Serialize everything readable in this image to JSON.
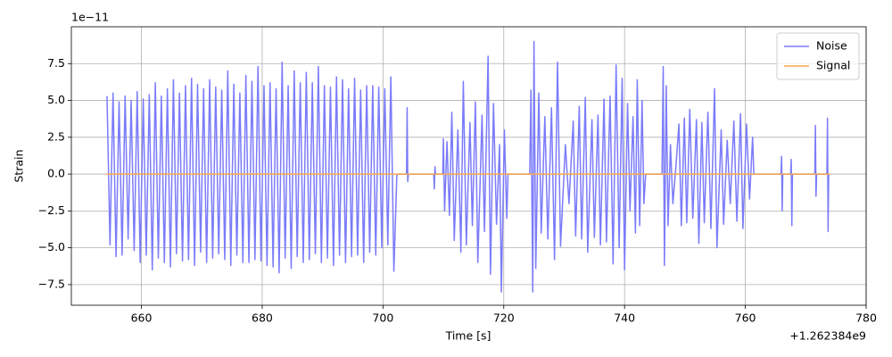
{
  "chart_data": {
    "type": "line",
    "xlabel": "Time [s]",
    "ylabel": "Strain",
    "x_offset_label": "+1.262384e9",
    "y_offset_label": "1e−11",
    "xlim": [
      648.4,
      780
    ],
    "ylim": [
      -8.9,
      10.0
    ],
    "xticks": [
      660,
      680,
      700,
      720,
      740,
      760,
      780
    ],
    "yticks": [
      {
        "value": -7.5,
        "label": "−7.5"
      },
      {
        "value": -5,
        "label": "−5.0"
      },
      {
        "value": -2.5,
        "label": "−2.5"
      },
      {
        "value": 0,
        "label": "0.0"
      },
      2.5,
      {
        "value": 5,
        "label": "5.0"
      },
      7.5
    ],
    "grid": true,
    "legend": "upper right",
    "series": [
      {
        "name": "Noise",
        "color": "#7b7bfa",
        "x": [
          654.3,
          654.8,
          655.3,
          655.8,
          656.3,
          656.8,
          657.3,
          657.8,
          658.3,
          658.8,
          659.3,
          659.8,
          660.3,
          660.8,
          661.3,
          661.8,
          662.3,
          662.8,
          663.3,
          663.8,
          664.3,
          664.8,
          665.3,
          665.8,
          666.3,
          666.8,
          667.3,
          667.8,
          668.3,
          668.8,
          669.3,
          669.8,
          670.3,
          670.8,
          671.3,
          671.8,
          672.3,
          672.8,
          673.3,
          673.8,
          674.3,
          674.8,
          675.3,
          675.8,
          676.3,
          676.8,
          677.3,
          677.8,
          678.3,
          678.8,
          679.3,
          679.8,
          680.3,
          680.8,
          681.3,
          681.8,
          682.3,
          682.8,
          683.3,
          683.8,
          684.3,
          684.8,
          685.3,
          685.8,
          686.3,
          686.8,
          687.3,
          687.8,
          688.3,
          688.8,
          689.3,
          689.8,
          690.3,
          690.8,
          691.3,
          691.8,
          692.3,
          692.8,
          693.3,
          693.8,
          694.3,
          694.8,
          695.3,
          695.8,
          696.3,
          696.8,
          697.3,
          697.8,
          698.3,
          698.8,
          699.3,
          699.8,
          700.3,
          700.8,
          701.3,
          701.8,
          702.3,
          703.9,
          704.0,
          704.1,
          704.2,
          708.4,
          708.5,
          708.6,
          708.7,
          709.9,
          710.0,
          710.2,
          710.6,
          711.0,
          711.4,
          711.8,
          712.4,
          712.9,
          713.3,
          713.8,
          714.4,
          714.8,
          715.3,
          715.7,
          716.4,
          716.8,
          717.4,
          717.8,
          718.3,
          718.8,
          719.3,
          719.6,
          720.1,
          720.5,
          720.7,
          724.3,
          724.5,
          724.8,
          725.0,
          725.3,
          725.8,
          726.2,
          726.8,
          727.3,
          727.9,
          728.4,
          728.9,
          729.4,
          730.2,
          730.8,
          731.5,
          731.9,
          732.5,
          732.9,
          733.5,
          733.9,
          734.6,
          735.0,
          735.6,
          736.0,
          736.6,
          737.0,
          737.6,
          738.1,
          738.6,
          739.1,
          739.6,
          740.0,
          740.5,
          740.9,
          741.4,
          741.8,
          742.1,
          742.5,
          742.9,
          743.2,
          743.5,
          746.2,
          746.4,
          746.6,
          746.9,
          747.2,
          747.6,
          748.0,
          748.5,
          749.0,
          749.4,
          749.9,
          750.3,
          750.8,
          751.3,
          751.9,
          752.3,
          752.8,
          753.2,
          753.8,
          754.3,
          754.9,
          755.3,
          756.0,
          756.4,
          757.0,
          757.5,
          758.1,
          758.6,
          759.2,
          759.6,
          760.2,
          760.7,
          761.2,
          761.4,
          765.9,
          766.0,
          766.1,
          766.2,
          767.5,
          767.6,
          767.7,
          767.8,
          771.5,
          771.6,
          771.7,
          771.8,
          773.5,
          773.6,
          773.7,
          773.8
        ],
        "values": [
          5.3,
          -4.8,
          5.5,
          -5.6,
          4.9,
          -5.5,
          5.3,
          -4.4,
          5.0,
          -5.2,
          5.6,
          -6.0,
          5.1,
          -5.5,
          5.4,
          -6.5,
          6.2,
          -5.7,
          5.3,
          -6.0,
          5.8,
          -6.3,
          6.4,
          -5.4,
          5.5,
          -5.9,
          6.0,
          -5.8,
          6.5,
          -6.2,
          6.1,
          -5.3,
          5.8,
          -6.0,
          6.4,
          -5.7,
          5.9,
          -5.4,
          5.7,
          -5.8,
          7.0,
          -6.2,
          6.1,
          -5.5,
          5.5,
          -6.0,
          6.7,
          -6.0,
          6.3,
          -5.8,
          7.3,
          -5.9,
          6.0,
          -6.2,
          6.2,
          -6.3,
          5.8,
          -6.7,
          7.6,
          -5.7,
          6.0,
          -6.4,
          7.0,
          -5.6,
          6.2,
          -6.0,
          6.9,
          -5.8,
          6.2,
          -5.4,
          7.3,
          -6.0,
          6.0,
          -5.7,
          5.9,
          -6.2,
          6.6,
          -5.5,
          6.4,
          -6.0,
          5.8,
          -5.6,
          6.5,
          -5.5,
          5.7,
          -6.0,
          6.0,
          -5.3,
          6.0,
          -5.5,
          5.9,
          -5.0,
          5.8,
          -4.8,
          6.6,
          -6.6,
          0.0,
          0,
          4.5,
          -0.5,
          0,
          0,
          -1.0,
          0.5,
          0,
          0,
          2.4,
          -2.5,
          2.2,
          -2.8,
          4.2,
          -4.5,
          3.0,
          -5.3,
          6.3,
          -4.8,
          3.5,
          -3.5,
          4.9,
          -6.0,
          4.0,
          -3.9,
          8.0,
          -6.8,
          4.8,
          -3.4,
          2.0,
          -8.0,
          3.0,
          -3.0,
          0,
          0,
          5.7,
          -8.0,
          9.0,
          -6.4,
          5.5,
          -4.0,
          3.9,
          -4.4,
          4.5,
          -5.8,
          7.6,
          -4.9,
          2.0,
          -2.0,
          3.6,
          -4.2,
          4.6,
          -4.4,
          5.2,
          -5.3,
          3.7,
          -4.3,
          4.0,
          -4.8,
          5.1,
          -4.6,
          5.3,
          -6.1,
          7.4,
          -5.0,
          6.5,
          -6.5,
          4.8,
          -2.5,
          3.9,
          -4.0,
          6.4,
          -3.5,
          5.0,
          -2.0,
          0,
          0,
          7.3,
          -6.2,
          6.0,
          -3.5,
          2.0,
          -2.0,
          0.5,
          3.4,
          -3.5,
          3.8,
          -3.3,
          4.4,
          -3.0,
          3.7,
          -4.7,
          3.5,
          -3.3,
          4.2,
          -3.7,
          5.8,
          -5.0,
          3.0,
          -3.4,
          2.3,
          -2.0,
          3.6,
          -3.2,
          4.1,
          -3.7,
          3.4,
          -1.7,
          2.5,
          0,
          0,
          1.2,
          -2.5,
          0,
          0,
          1.0,
          -3.5,
          0,
          0,
          3.3,
          -1.5,
          0,
          0,
          3.8,
          -3.9,
          0
        ]
      },
      {
        "name": "Signal",
        "color": "#f7a94a",
        "x": [
          654.2,
          704.0,
          724.5,
          774.0
        ],
        "values": [
          0,
          0,
          0,
          0
        ]
      }
    ]
  }
}
